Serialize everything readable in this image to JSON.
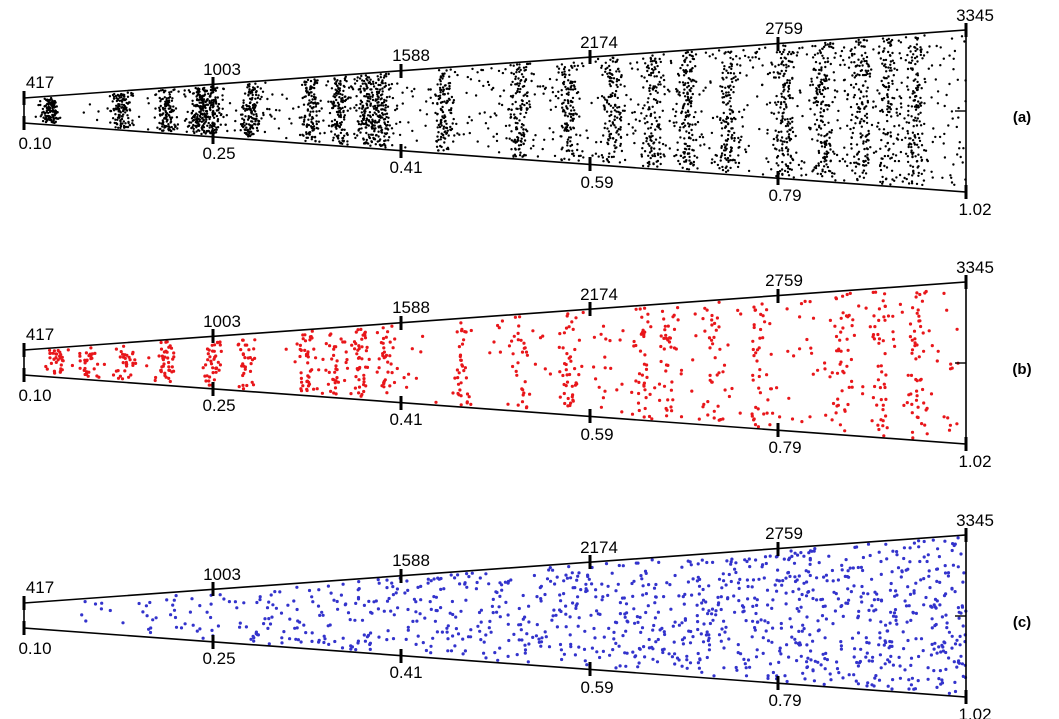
{
  "chart_data": [
    {
      "type": "scatter",
      "panel_label": "(a)",
      "distance_labels": [
        "417",
        "1003",
        "1588",
        "2174",
        "2759",
        "3345"
      ],
      "redshift_labels": [
        "0.10",
        "0.25",
        "0.41",
        "0.59",
        "0.79",
        "1.02"
      ],
      "distance_range": [
        417,
        3345
      ],
      "redshift_range": [
        0.1,
        1.02
      ],
      "point_color": "#000000",
      "density": "very high",
      "pattern": "strong clustering in walls",
      "point_count_estimate": 3600,
      "cluster_walls_distance": [
        500,
        720,
        860,
        960,
        1003,
        1120,
        1310,
        1400,
        1480,
        1530,
        1720,
        1960,
        2110,
        2250,
        2370,
        2480,
        2610,
        2780,
        2900,
        3020,
        3100,
        3190
      ]
    },
    {
      "type": "scatter",
      "panel_label": "(b)",
      "distance_labels": [
        "417",
        "1003",
        "1588",
        "2174",
        "2759",
        "3345"
      ],
      "redshift_labels": [
        "0.10",
        "0.25",
        "0.41",
        "0.59",
        "0.79",
        "1.02"
      ],
      "distance_range": [
        417,
        3345
      ],
      "redshift_range": [
        0.1,
        1.02
      ],
      "point_color": "#e8161a",
      "density": "medium",
      "pattern": "clustered in walls",
      "point_count_estimate": 900,
      "cluster_walls_distance": [
        515,
        620,
        730,
        860,
        1000,
        1110,
        1300,
        1390,
        1460,
        1540,
        1780,
        1960,
        2110,
        2340,
        2420,
        2560,
        2700,
        2960,
        3080,
        3190
      ]
    },
    {
      "type": "scatter",
      "panel_label": "(c)",
      "distance_labels": [
        "417",
        "1003",
        "1588",
        "2174",
        "2759",
        "3345"
      ],
      "redshift_labels": [
        "0.10",
        "0.25",
        "0.41",
        "0.59",
        "0.79",
        "1.02"
      ],
      "distance_range": [
        417,
        3345
      ],
      "redshift_range": [
        0.1,
        1.02
      ],
      "point_color": "#3333cc",
      "density": "medium",
      "pattern": "uniform random",
      "point_count_estimate": 1100,
      "cluster_walls_distance": []
    }
  ]
}
